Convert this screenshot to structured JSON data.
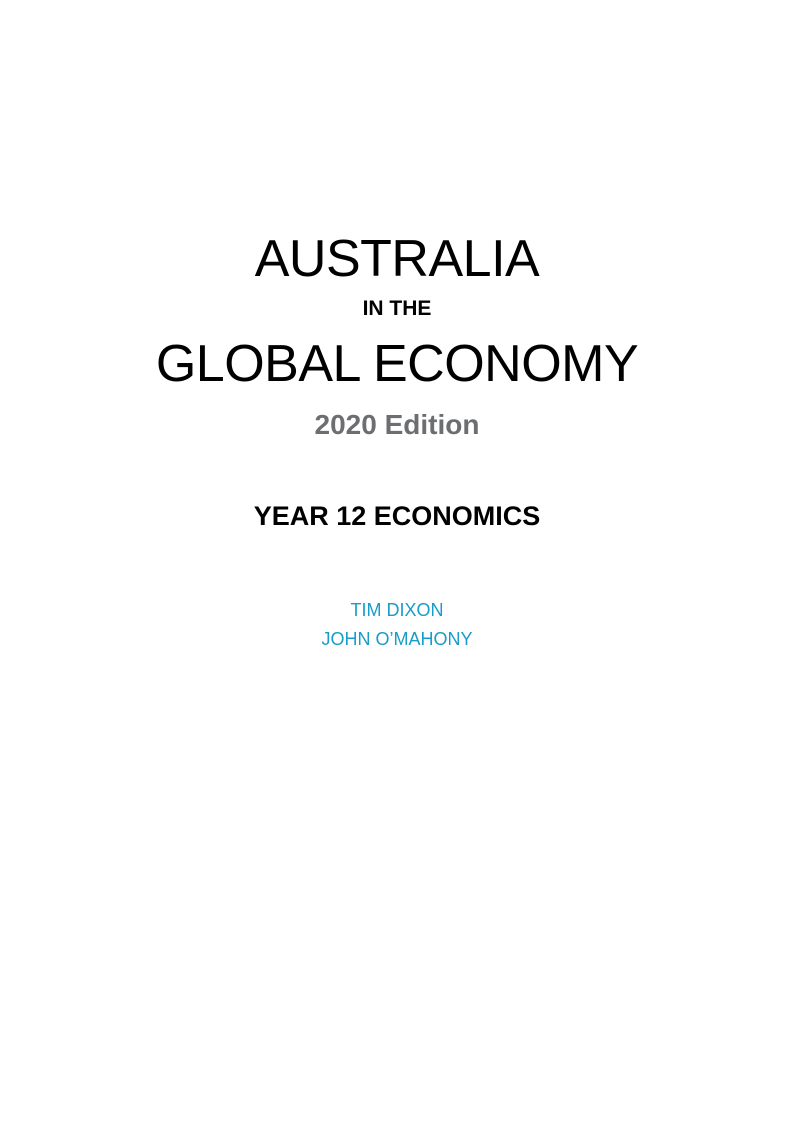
{
  "title": {
    "main": "AUSTRALIA",
    "connector": "IN THE",
    "sub": "GLOBAL ECONOMY"
  },
  "edition": "2020 Edition",
  "course": "YEAR 12 ECONOMICS",
  "authors": [
    "TIM DIXON",
    "JOHN O’MAHONY"
  ],
  "colors": {
    "title": "#000000",
    "edition": "#6d6e71",
    "authors": "#1a9cc8"
  }
}
